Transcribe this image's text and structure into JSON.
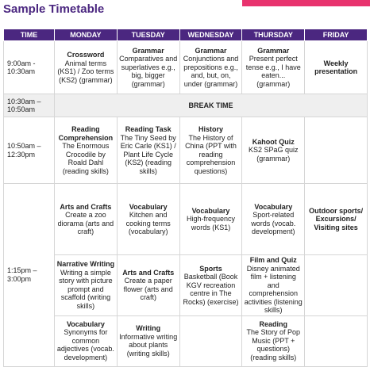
{
  "header": {
    "title": "Sample Timetable"
  },
  "table": {
    "columns": [
      "TIME",
      "MONDAY",
      "TUESDAY",
      "WEDNESDAY",
      "THURSDAY",
      "FRIDAY"
    ],
    "rows": [
      {
        "time": "9:00am - 10:30am",
        "cells": [
          {
            "title": "Crossword",
            "body": "Animal terms (KS1) / Zoo terms (KS2) (grammar)"
          },
          {
            "title": "Grammar",
            "body": "Comparatives and superlatives e.g., big, bigger (grammar)"
          },
          {
            "title": "Grammar",
            "body": "Conjunctions and prepositions e.g., and, but, on, under (grammar)"
          },
          {
            "title": "Grammar",
            "body": "Present perfect tense e.g., I have eaten... (grammar)"
          },
          {
            "title": "Weekly presentation"
          }
        ]
      },
      {
        "time": "10:30am – 10:50am",
        "break": "BREAK TIME"
      },
      {
        "time": "10:50am – 12:30pm",
        "cells": [
          {
            "title": "Reading Comprehension",
            "body": "The Enormous Crocodile by Roald Dahl (reading skills)"
          },
          {
            "title": "Reading Task",
            "body": "The Tiny Seed by Eric Carle (KS1) / Plant Life Cycle (KS2) (reading skills)"
          },
          {
            "title": "History",
            "body": "The History of China (PPT with reading comprehension questions)"
          },
          {
            "title": "Kahoot Quiz",
            "body": "KS2 SPaG quiz (grammar)"
          },
          null
        ]
      },
      {
        "time": "1:15pm – 3:00pm",
        "cells": [
          {
            "title": "Arts and Crafts",
            "body": "Create a zoo diorama (arts and craft)"
          },
          {
            "title": "Vocabulary",
            "body": "Kitchen and cooking terms (vocabulary)"
          },
          {
            "title": "Vocabulary",
            "body": "High-frequency words (KS1)"
          },
          {
            "title": "Vocabulary",
            "body": "Sport-related words (vocab. development)"
          },
          {
            "title": "Outdoor sports/ Excursions/ Visiting sites"
          }
        ]
      },
      {
        "cells": [
          {
            "title": "Narrative Writing",
            "body": "Writing a simple story with picture prompt and scaffold (writing skills)"
          },
          {
            "title": "Arts and Crafts",
            "body": "Create a paper flower (arts and craft)"
          },
          {
            "title": "Sports",
            "body": "Basketball (Book KGV recreation centre in The Rocks) (exercise)"
          },
          {
            "title": "Film and Quiz",
            "body": "Disney animated film + listening and comprehension activities (listening skills)"
          },
          null
        ]
      },
      {
        "cells": [
          {
            "title": "Vocabulary",
            "body": "Synonyms for common adjectives (vocab. development)"
          },
          {
            "title": "Writing",
            "body": "Informative writing about plants (writing skills)"
          },
          null,
          {
            "title": "Reading",
            "body": "The Story of Pop Music (PPT + questions) (reading skills)"
          },
          null
        ]
      }
    ]
  }
}
